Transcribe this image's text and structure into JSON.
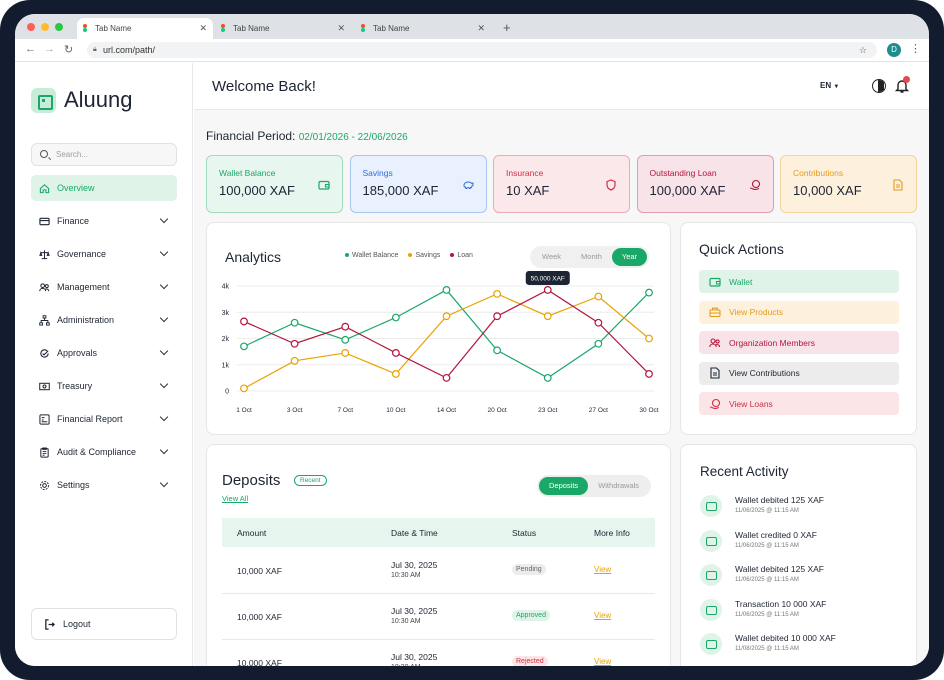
{
  "browser": {
    "tabs": [
      "Tab Name",
      "Tab Name",
      "Tab Name"
    ],
    "url": "url.com/path/",
    "profile_initial": "D"
  },
  "sidebar": {
    "app_name": "Aluung",
    "search_placeholder": "Search...",
    "items": [
      {
        "label": "Overview",
        "icon": "home-icon"
      },
      {
        "label": "Finance",
        "icon": "card-icon"
      },
      {
        "label": "Governance",
        "icon": "scale-icon"
      },
      {
        "label": "Management",
        "icon": "users-icon"
      },
      {
        "label": "Administration",
        "icon": "hierarchy-icon"
      },
      {
        "label": "Approvals",
        "icon": "approval-icon"
      },
      {
        "label": "Treasury",
        "icon": "money-icon"
      },
      {
        "label": "Financial Report",
        "icon": "report-icon"
      },
      {
        "label": "Audit & Compliance",
        "icon": "clipboard-icon"
      },
      {
        "label": "Settings",
        "icon": "gear-icon"
      }
    ],
    "logout": "Logout"
  },
  "header": {
    "welcome": "Welcome Back!",
    "lang": "EN"
  },
  "period": {
    "label": "Financial Period:",
    "range": "02/01/2026 - 22/06/2026"
  },
  "stats": [
    {
      "label": "Wallet Balance",
      "value": "100,000 XAF",
      "color": "#1aa869",
      "bg": "#e7f6ee"
    },
    {
      "label": "Savings",
      "value": "185,000 XAF",
      "color": "#2f6fd6",
      "bg": "#e8f1fd"
    },
    {
      "label": "Insurance",
      "value": "10 XAF",
      "color": "#cf2f44",
      "bg": "#fbe8ea"
    },
    {
      "label": "Outstanding Loan",
      "value": "100,000 XAF",
      "color": "#b3163d",
      "bg": "#f8e3e8"
    },
    {
      "label": "Contributions",
      "value": "10,000 XAF",
      "color": "#e39a1a",
      "bg": "#fdf1de"
    }
  ],
  "analytics": {
    "title": "Analytics",
    "ranges": [
      "Week",
      "Month",
      "Year"
    ],
    "selected_range": "Year",
    "tooltip": "50,000 XAF"
  },
  "chart_data": {
    "type": "line",
    "x": [
      "1 Oct",
      "3 Oct",
      "7 Oct",
      "10 Oct",
      "14 Oct",
      "20 Oct",
      "23 Oct",
      "27 Oct",
      "30 Oct"
    ],
    "y_ticks": [
      "0",
      "1k",
      "2k",
      "3k",
      "4k"
    ],
    "ylim": [
      0,
      4000
    ],
    "series": [
      {
        "name": "Wallet Balance",
        "color": "#1aa869",
        "values": [
          1700,
          2600,
          1950,
          2800,
          3850,
          1550,
          500,
          1800,
          3750
        ]
      },
      {
        "name": "Savings",
        "color": "#e8a200",
        "values": [
          100,
          1150,
          1450,
          650,
          2850,
          3700,
          2850,
          3600,
          2000
        ]
      },
      {
        "name": "Loan",
        "color": "#b3163d",
        "values": [
          2650,
          1800,
          2450,
          1450,
          500,
          2850,
          3850,
          2600,
          650
        ]
      }
    ]
  },
  "quick_actions": {
    "title": "Quick Actions",
    "items": [
      {
        "label": "Wallet",
        "color": "#1aa869",
        "bg": "#dff3e8",
        "icon": "wallet-icon"
      },
      {
        "label": "View Products",
        "color": "#e39a1a",
        "bg": "#fdf1de",
        "icon": "products-icon"
      },
      {
        "label": "Organization Members",
        "color": "#b3163d",
        "bg": "#f8e3e8",
        "icon": "members-icon"
      },
      {
        "label": "View Contributions",
        "color": "#1d2433",
        "bg": "#ececec",
        "icon": "document-icon"
      },
      {
        "label": "View Loans",
        "color": "#cf2f44",
        "bg": "#fbe5e7",
        "icon": "loan-icon"
      }
    ]
  },
  "deposits": {
    "title": "Deposits",
    "badge": "Recent",
    "view_all": "View All",
    "tabs": [
      "Deposits",
      "Withdrawals"
    ],
    "columns": [
      "Amount",
      "Date & Time",
      "Status",
      "More Info"
    ],
    "rows": [
      {
        "amount": "10,000 XAF",
        "date": "Jul 30, 2025",
        "time": "10:30 AM",
        "status": "Pending",
        "action": "View",
        "status_color": "#666",
        "status_bg": "#ececec"
      },
      {
        "amount": "10,000 XAF",
        "date": "Jul 30, 2025",
        "time": "10:30 AM",
        "status": "Approved",
        "action": "View",
        "status_color": "#1aa869",
        "status_bg": "#dff3e8"
      },
      {
        "amount": "10,000 XAF",
        "date": "Jul 30, 2025",
        "time": "10:30 AM",
        "status": "Rejected",
        "action": "View",
        "status_color": "#cf2f44",
        "status_bg": "#fbe5e7"
      }
    ]
  },
  "recent_activity": {
    "title": "Recent Activity",
    "items": [
      {
        "text": "Wallet debited 125 XAF",
        "date": "11/06/2025 @ 11:15 AM"
      },
      {
        "text": "Wallet credited 0 XAF",
        "date": "11/06/2025 @ 11:15 AM"
      },
      {
        "text": "Wallet debited 125 XAF",
        "date": "11/06/2025 @ 11:15 AM"
      },
      {
        "text": "Transaction 10 000 XAF",
        "date": "11/06/2025 @ 11:15 AM"
      },
      {
        "text": "Wallet debited 10 000 XAF",
        "date": "11/08/2025 @ 11:15 AM"
      }
    ]
  }
}
